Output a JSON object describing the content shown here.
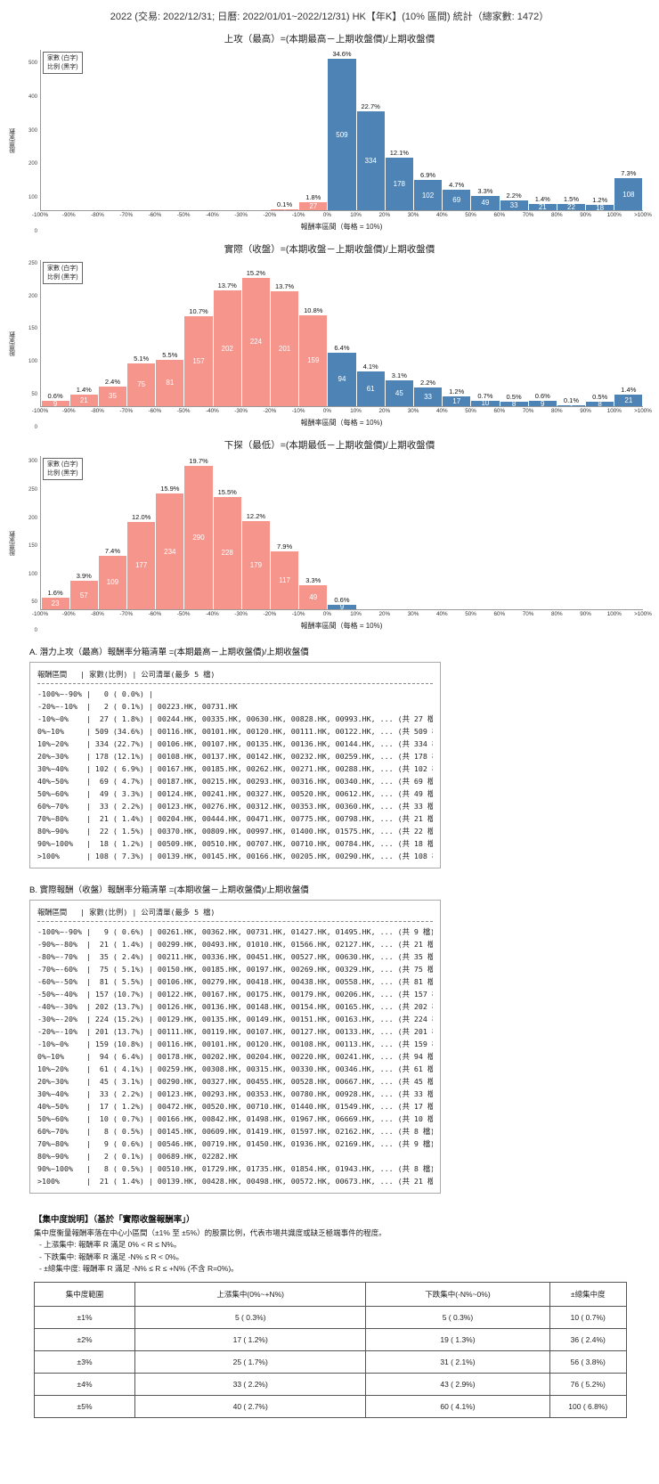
{
  "page_title": "2022 (交易: 2022/12/31; 日曆: 2022/01/01~2022/12/31) HK【年K】(10% 區間) 統計（總家數: 1472）",
  "colors": {
    "up_bar": "#4d84b5",
    "down_bar": "#f5958c",
    "bar_count_text": "#ffffff"
  },
  "legend": {
    "line1": "家數 (白字)",
    "line2": "比例 (黑字)"
  },
  "axis": {
    "x_ticks": [
      "-100%",
      "-90%",
      "-80%",
      "-70%",
      "-60%",
      "-50%",
      "-40%",
      "-30%",
      "-20%",
      "-10%",
      "0%",
      "10%",
      "20%",
      "30%",
      "40%",
      "50%",
      "60%",
      "70%",
      "80%",
      "90%",
      "100%",
      ">100%"
    ]
  },
  "chart_data": [
    {
      "type": "bar",
      "title": "上攻（最高）=(本期最高－上期收盤價)/上期收盤價",
      "xlabel": "報酬率區間（每格 = 10%)",
      "ylabel": "股票家數",
      "ymax": 540,
      "yticks": [
        0,
        100,
        200,
        300,
        400,
        500
      ],
      "negative_before_index": 10,
      "counts": [
        0,
        0,
        0,
        0,
        0,
        0,
        0,
        0,
        2,
        27,
        509,
        334,
        178,
        102,
        69,
        49,
        33,
        21,
        22,
        18,
        108
      ],
      "percents": [
        "",
        "",
        "",
        "",
        "",
        "",
        "",
        "",
        "0.1%",
        "1.8%",
        "34.6%",
        "22.7%",
        "12.1%",
        "6.9%",
        "4.7%",
        "3.3%",
        "2.2%",
        "1.4%",
        "1.5%",
        "1.2%",
        "7.3%"
      ]
    },
    {
      "type": "bar",
      "title": "實際（收盤）=(本期收盤－上期收盤價)/上期收盤價",
      "xlabel": "報酬率區間（每格 = 10%)",
      "ylabel": "股票家數",
      "ymax": 255,
      "yticks": [
        0,
        50,
        100,
        150,
        200,
        250
      ],
      "negative_before_index": 10,
      "counts": [
        9,
        21,
        35,
        75,
        81,
        157,
        202,
        224,
        201,
        159,
        94,
        61,
        45,
        33,
        17,
        10,
        8,
        9,
        2,
        8,
        21
      ],
      "percents": [
        "0.6%",
        "1.4%",
        "2.4%",
        "5.1%",
        "5.5%",
        "10.7%",
        "13.7%",
        "15.2%",
        "13.7%",
        "10.8%",
        "6.4%",
        "4.1%",
        "3.1%",
        "2.2%",
        "1.2%",
        "0.7%",
        "0.5%",
        "0.6%",
        "0.1%",
        "0.5%",
        "1.4%"
      ]
    },
    {
      "type": "bar",
      "title": "下探（最低）=(本期最低－上期收盤價)/上期收盤價",
      "xlabel": "報酬率區間（每格 = 10%)",
      "ylabel": "股票家數",
      "ymax": 310,
      "yticks": [
        0,
        50,
        100,
        150,
        200,
        250,
        300
      ],
      "negative_before_index": 10,
      "counts": [
        23,
        57,
        109,
        177,
        234,
        290,
        228,
        179,
        117,
        49,
        9,
        0,
        0,
        0,
        0,
        0,
        0,
        0,
        0,
        0,
        0
      ],
      "percents": [
        "1.6%",
        "3.9%",
        "7.4%",
        "12.0%",
        "15.9%",
        "19.7%",
        "15.5%",
        "12.2%",
        "7.9%",
        "3.3%",
        "0.6%",
        "",
        "",
        "",
        "",
        "",
        "",
        "",
        "",
        "",
        ""
      ]
    }
  ],
  "section_a": {
    "heading": "A. 潛力上攻（最高）報酬率分箱清單 =(本期最高－上期收盤價)/上期收盤價",
    "col_header": "報酬區間   | 家數(比例) | 公司清單(最多 5 檔)",
    "rows": [
      {
        "range": "-100%~-90%",
        "count": 0,
        "pct": "0.0%",
        "companies": ""
      },
      {
        "range": "-20%~-10%",
        "count": 2,
        "pct": "0.1%",
        "companies": "00223.HK, 00731.HK"
      },
      {
        "range": "-10%~0%",
        "count": 27,
        "pct": "1.8%",
        "companies": "00244.HK, 00335.HK, 00630.HK, 00828.HK, 00993.HK, ... (共 27 檔)"
      },
      {
        "range": "0%~10%",
        "count": 509,
        "pct": "34.6%",
        "companies": "00116.HK, 00101.HK, 00120.HK, 00111.HK, 00122.HK, ... (共 509 檔)"
      },
      {
        "range": "10%~20%",
        "count": 334,
        "pct": "22.7%",
        "companies": "00106.HK, 00107.HK, 00135.HK, 00136.HK, 00144.HK, ... (共 334 檔)"
      },
      {
        "range": "20%~30%",
        "count": 178,
        "pct": "12.1%",
        "companies": "00108.HK, 00137.HK, 00142.HK, 00232.HK, 00259.HK, ... (共 178 檔)"
      },
      {
        "range": "30%~40%",
        "count": 102,
        "pct": "6.9%",
        "companies": "00167.HK, 00185.HK, 00262.HK, 00271.HK, 00288.HK, ... (共 102 檔)"
      },
      {
        "range": "40%~50%",
        "count": 69,
        "pct": "4.7%",
        "companies": "00187.HK, 00215.HK, 00293.HK, 00316.HK, 00340.HK, ... (共 69 檔)"
      },
      {
        "range": "50%~60%",
        "count": 49,
        "pct": "3.3%",
        "companies": "00124.HK, 00241.HK, 00327.HK, 00520.HK, 00612.HK, ... (共 49 檔)"
      },
      {
        "range": "60%~70%",
        "count": 33,
        "pct": "2.2%",
        "companies": "00123.HK, 00276.HK, 00312.HK, 00353.HK, 00360.HK, ... (共 33 檔)"
      },
      {
        "range": "70%~80%",
        "count": 21,
        "pct": "1.4%",
        "companies": "00204.HK, 00444.HK, 00471.HK, 00775.HK, 00798.HK, ... (共 21 檔)"
      },
      {
        "range": "80%~90%",
        "count": 22,
        "pct": "1.5%",
        "companies": "00370.HK, 00809.HK, 00997.HK, 01400.HK, 01575.HK, ... (共 22 檔)"
      },
      {
        "range": "90%~100%",
        "count": 18,
        "pct": "1.2%",
        "companies": "00509.HK, 00510.HK, 00707.HK, 00710.HK, 00784.HK, ... (共 18 檔)"
      },
      {
        "range": ">100%",
        "count": 108,
        "pct": "7.3%",
        "companies": "00139.HK, 00145.HK, 00166.HK, 00205.HK, 00290.HK, ... (共 108 檔)"
      }
    ]
  },
  "section_b": {
    "heading": "B. 實際報酬（收盤）報酬率分箱清單 =(本期收盤－上期收盤價)/上期收盤價",
    "col_header": "報酬區間   | 家數(比例) | 公司清單(最多 5 檔)",
    "rows": [
      {
        "range": "-100%~-90%",
        "count": 9,
        "pct": "0.6%",
        "companies": "00261.HK, 00362.HK, 00731.HK, 01427.HK, 01495.HK, ... (共 9 檔)"
      },
      {
        "range": "-90%~-80%",
        "count": 21,
        "pct": "1.4%",
        "companies": "00299.HK, 00493.HK, 01010.HK, 01566.HK, 02127.HK, ... (共 21 檔)"
      },
      {
        "range": "-80%~-70%",
        "count": 35,
        "pct": "2.4%",
        "companies": "00211.HK, 00336.HK, 00451.HK, 00527.HK, 00630.HK, ... (共 35 檔)"
      },
      {
        "range": "-70%~-60%",
        "count": 75,
        "pct": "5.1%",
        "companies": "00150.HK, 00185.HK, 00197.HK, 00269.HK, 00329.HK, ... (共 75 檔)"
      },
      {
        "range": "-60%~-50%",
        "count": 81,
        "pct": "5.5%",
        "companies": "00106.HK, 00279.HK, 00418.HK, 00438.HK, 00558.HK, ... (共 81 檔)"
      },
      {
        "range": "-50%~-40%",
        "count": 157,
        "pct": "10.7%",
        "companies": "00122.HK, 00167.HK, 00175.HK, 00179.HK, 00206.HK, ... (共 157 檔)"
      },
      {
        "range": "-40%~-30%",
        "count": 202,
        "pct": "13.7%",
        "companies": "00126.HK, 00136.HK, 00148.HK, 00154.HK, 00165.HK, ... (共 202 檔)"
      },
      {
        "range": "-30%~-20%",
        "count": 224,
        "pct": "15.2%",
        "companies": "00129.HK, 00135.HK, 00149.HK, 00151.HK, 00163.HK, ... (共 224 檔)"
      },
      {
        "range": "-20%~-10%",
        "count": 201,
        "pct": "13.7%",
        "companies": "00111.HK, 00119.HK, 00107.HK, 00127.HK, 00133.HK, ... (共 201 檔)"
      },
      {
        "range": "-10%~0%",
        "count": 159,
        "pct": "10.8%",
        "companies": "00116.HK, 00101.HK, 00120.HK, 00108.HK, 00113.HK, ... (共 159 檔)"
      },
      {
        "range": "0%~10%",
        "count": 94,
        "pct": "6.4%",
        "companies": "00178.HK, 00202.HK, 00204.HK, 00220.HK, 00241.HK, ... (共 94 檔)"
      },
      {
        "range": "10%~20%",
        "count": 61,
        "pct": "4.1%",
        "companies": "00259.HK, 00308.HK, 00315.HK, 00330.HK, 00346.HK, ... (共 61 檔)"
      },
      {
        "range": "20%~30%",
        "count": 45,
        "pct": "3.1%",
        "companies": "00290.HK, 00327.HK, 00455.HK, 00528.HK, 00667.HK, ... (共 45 檔)"
      },
      {
        "range": "30%~40%",
        "count": 33,
        "pct": "2.2%",
        "companies": "00123.HK, 00293.HK, 00353.HK, 00780.HK, 00928.HK, ... (共 33 檔)"
      },
      {
        "range": "40%~50%",
        "count": 17,
        "pct": "1.2%",
        "companies": "00472.HK, 00520.HK, 00710.HK, 01440.HK, 01549.HK, ... (共 17 檔)"
      },
      {
        "range": "50%~60%",
        "count": 10,
        "pct": "0.7%",
        "companies": "00166.HK, 00842.HK, 01498.HK, 01967.HK, 06669.HK, ... (共 10 檔)"
      },
      {
        "range": "60%~70%",
        "count": 8,
        "pct": "0.5%",
        "companies": "00145.HK, 00609.HK, 01419.HK, 01597.HK, 02162.HK, ... (共 8 檔)"
      },
      {
        "range": "70%~80%",
        "count": 9,
        "pct": "0.6%",
        "companies": "00546.HK, 00719.HK, 01450.HK, 01936.HK, 02169.HK, ... (共 9 檔)"
      },
      {
        "range": "80%~90%",
        "count": 2,
        "pct": "0.1%",
        "companies": "00689.HK, 02282.HK"
      },
      {
        "range": "90%~100%",
        "count": 8,
        "pct": "0.5%",
        "companies": "00510.HK, 01729.HK, 01735.HK, 01854.HK, 01943.HK, ... (共 8 檔)"
      },
      {
        "range": ">100%",
        "count": 21,
        "pct": "1.4%",
        "companies": "00139.HK, 00428.HK, 00498.HK, 00572.HK, 00673.HK, ... (共 21 檔)"
      }
    ]
  },
  "concentration": {
    "heading": "【集中度說明】（基於「實際收盤報酬率」）",
    "desc": "集中度衡量報酬率落在中心小區間（±1% 至 ±5%）的股票比例，代表市場共識度或缺乏極端事件的程度。",
    "bullets": [
      "- 上漲集中: 報酬率 R 滿足 0% < R ≤ N%。",
      "- 下跌集中: 報酬率 R 滿足 -N% ≤ R < 0%。",
      "- ±總集中度: 報酬率 R 滿足 -N% ≤ R ≤ +N% (不含 R=0%)。"
    ],
    "table": {
      "headers": [
        "集中度範圍",
        "上漲集中(0%~+N%)",
        "下跌集中(-N%~0%)",
        "±總集中度"
      ],
      "rows": [
        [
          "±1%",
          "5 ( 0.3%)",
          "5 ( 0.3%)",
          "10 ( 0.7%)"
        ],
        [
          "±2%",
          "17 ( 1.2%)",
          "19 ( 1.3%)",
          "36 ( 2.4%)"
        ],
        [
          "±3%",
          "25 ( 1.7%)",
          "31 ( 2.1%)",
          "56 ( 3.8%)"
        ],
        [
          "±4%",
          "33 ( 2.2%)",
          "43 ( 2.9%)",
          "76 ( 5.2%)"
        ],
        [
          "±5%",
          "40 ( 2.7%)",
          "60 ( 4.1%)",
          "100 ( 6.8%)"
        ]
      ]
    }
  }
}
